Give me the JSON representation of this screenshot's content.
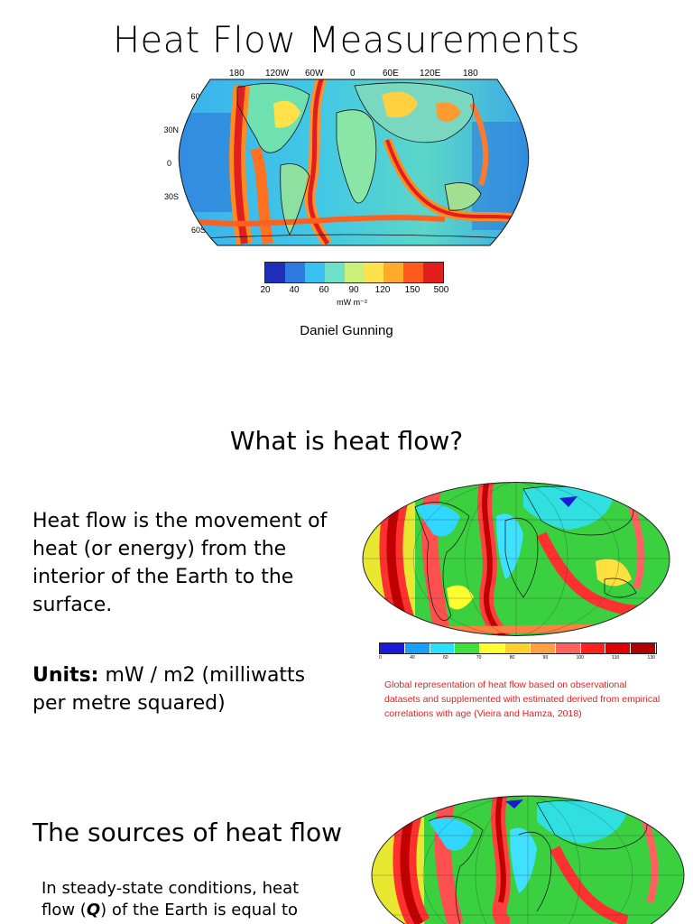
{
  "slide1": {
    "title": "Heat Flow Measurements",
    "lon_labels": [
      "180",
      "120W",
      "60W",
      "0",
      "60E",
      "120E",
      "180"
    ],
    "lat_labels": [
      "60N",
      "30N",
      "0",
      "30S",
      "60S"
    ],
    "colorbar": {
      "ticks": [
        "20",
        "40",
        "60",
        "90",
        "120",
        "150",
        "500"
      ],
      "unit": "mW m⁻²",
      "colors": [
        "#1f2fb8",
        "#2f7ae0",
        "#37c0f0",
        "#6fe0c8",
        "#c8f07a",
        "#ffe14a",
        "#ffaa2a",
        "#ff5a1e",
        "#e01e1e"
      ]
    },
    "author": "Daniel Gunning"
  },
  "slide2": {
    "title": "What is heat flow?",
    "paragraph": "Heat flow is the movement of heat (or energy) from the interior of the Earth to the surface.",
    "units_label": "Units:",
    "units_text": "mW / m2 (milliwatts per metre squared)",
    "caption": "Global representation of heat flow based on observational datasets and supplemented with estimated derived from empirical correlations with age (Vieira and Hamza, 2018)",
    "colorbar_colors": [
      "#1a1ad8",
      "#18a0ff",
      "#2ae0ff",
      "#40e040",
      "#ffff30",
      "#ffd030",
      "#ffa040",
      "#ff6060",
      "#ff2020",
      "#e00000",
      "#b00000"
    ],
    "colorbar_ticks": [
      "0",
      "40",
      "60",
      "70",
      "80",
      "90",
      "100",
      "110",
      "130"
    ]
  },
  "slide3": {
    "title": "The sources of heat flow",
    "paragraph_start": "In steady-state conditions, heat flow (",
    "paragraph_symbol": "Q",
    "paragraph_end": ") of the Earth is equal to"
  }
}
